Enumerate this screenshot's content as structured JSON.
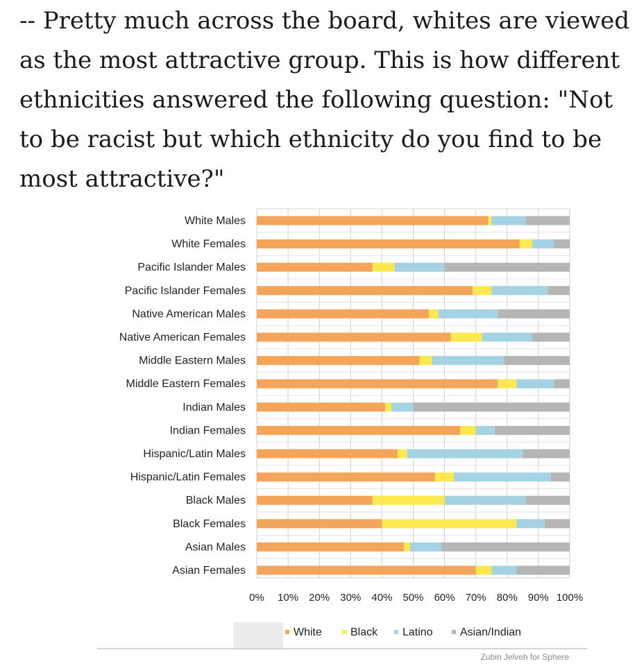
{
  "caption": "-- Pretty much across the board, whites are viewed as the most attractive group. This is how different ethnicities answered the following question: \"Not to be racist but which ethnicity do you find to be most attractive?\"",
  "credit": "Zubin Jelveh for Sphere",
  "colors": {
    "White": "#f5a55a",
    "Black": "#fce94f",
    "Latino": "#a6d3e3",
    "Asian/Indian": "#b5b5b5"
  },
  "chart_data": {
    "type": "bar",
    "orientation": "horizontal",
    "stacked": true,
    "categories": [
      "White Males",
      "White Females",
      "Pacific Islander Males",
      "Pacific Islander Females",
      "Native American Males",
      "Native American Females",
      "Middle Eastern Males",
      "Middle Eastern Females",
      "Indian Males",
      "Indian Females",
      "Hispanic/Latin Males",
      "Hispanic/Latin Females",
      "Black Males",
      "Black Females",
      "Asian Males",
      "Asian Females"
    ],
    "series": [
      {
        "name": "White",
        "values": [
          74,
          84,
          37,
          69,
          55,
          62,
          52,
          77,
          41,
          65,
          45,
          57,
          37,
          40,
          47,
          70
        ]
      },
      {
        "name": "Black",
        "values": [
          1,
          4,
          7,
          6,
          3,
          10,
          4,
          6,
          2,
          5,
          3,
          6,
          23,
          43,
          2,
          5
        ]
      },
      {
        "name": "Latino",
        "values": [
          11,
          7,
          16,
          18,
          19,
          16,
          23,
          12,
          7,
          6,
          37,
          31,
          26,
          9,
          10,
          8
        ]
      },
      {
        "name": "Asian/Indian",
        "values": [
          14,
          5,
          40,
          7,
          23,
          12,
          21,
          5,
          50,
          24,
          15,
          6,
          14,
          8,
          41,
          17
        ]
      }
    ],
    "xticks": [
      "0%",
      "10%",
      "20%",
      "30%",
      "40%",
      "50%",
      "60%",
      "70%",
      "80%",
      "90%",
      "100%"
    ],
    "xlim": [
      0,
      100
    ],
    "grid": true,
    "legend": "bottom"
  }
}
